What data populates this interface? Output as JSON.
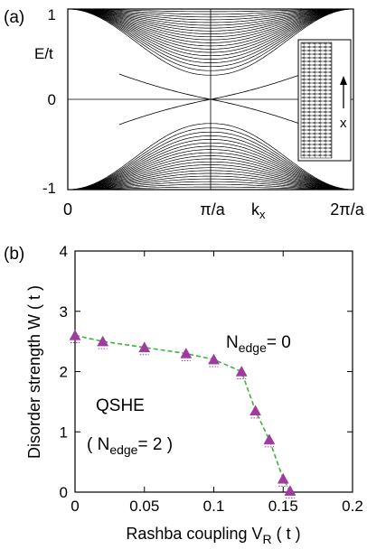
{
  "panel_a": {
    "label": "(a)",
    "ylabel": "E/t",
    "xlabel": "k",
    "xlabel_sub": "x",
    "y_ticks": [
      "1",
      "0",
      "-1"
    ],
    "x_ticks": [
      "0",
      "π/a",
      "2π/a"
    ],
    "inset_arrow_label": "x"
  },
  "panel_b": {
    "label": "(b)",
    "ylabel": "Disorder strength  W ( t )",
    "xlabel_main": "Rashba coupling  V",
    "xlabel_sub": "R",
    "xlabel_unit": " ( t )",
    "annotation_qshe": "QSHE",
    "annotation_nedge2_open": "( N",
    "annotation_nedge2_sub": "edge",
    "annotation_nedge2_close": "= 2 )",
    "annotation_nedge0_main": "N",
    "annotation_nedge0_sub": "edge",
    "annotation_nedge0_tail": "= 0",
    "marker_color": "#a03aa0",
    "line_color": "#3cb43c"
  },
  "chart_data": [
    {
      "type": "line",
      "title": "",
      "xlabel": "k_x",
      "ylabel": "E/t",
      "x_ticks": [
        "0",
        "π/a",
        "2π/a"
      ],
      "ylim": [
        -1,
        1
      ],
      "grid": false
    },
    {
      "type": "scatter",
      "title": "",
      "xlabel": "Rashba coupling V_R (t)",
      "ylabel": "Disorder strength W (t)",
      "xlim": [
        0,
        0.2
      ],
      "ylim": [
        0,
        4
      ],
      "x_ticks": [
        0,
        0.05,
        0.1,
        0.15,
        0.2
      ],
      "y_ticks": [
        0,
        1,
        2,
        3,
        4
      ],
      "series": [
        {
          "x": [
            0,
            0.02,
            0.05,
            0.08,
            0.1,
            0.12,
            0.13,
            0.14,
            0.15,
            0.155
          ],
          "values": [
            2.6,
            2.5,
            2.4,
            2.3,
            2.2,
            2.0,
            1.35,
            0.87,
            0.22,
            0.02
          ]
        }
      ]
    }
  ]
}
